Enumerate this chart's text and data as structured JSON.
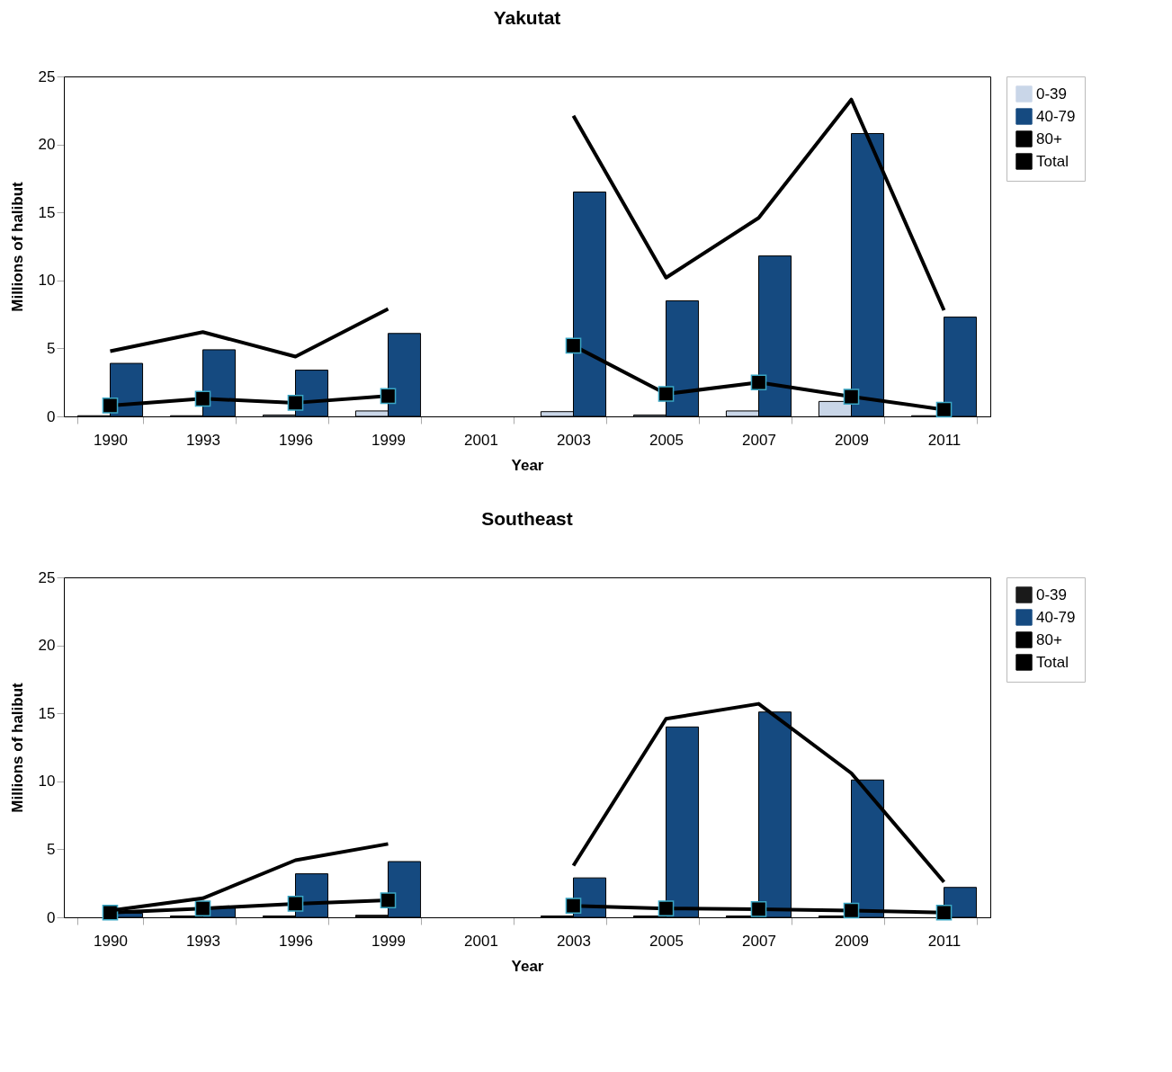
{
  "chart_data": [
    {
      "type": "bar",
      "title": "Yakutat",
      "xlabel": "Year",
      "ylabel": "Millions of halibut",
      "categories": [
        "1990",
        "1993",
        "1996",
        "1999",
        "2001",
        "2003",
        "2005",
        "2007",
        "2009",
        "2011"
      ],
      "ylim": [
        0,
        25
      ],
      "yticks": [
        0,
        5,
        10,
        15,
        20,
        25
      ],
      "legend": "right",
      "series": [
        {
          "name": "0-39",
          "color": "#c9d6e8",
          "values": [
            0.05,
            0.05,
            0.1,
            0.4,
            null,
            0.35,
            0.1,
            0.4,
            1.1,
            0.05
          ]
        },
        {
          "name": "40-79",
          "color": "#154a80",
          "values": [
            3.9,
            4.9,
            3.4,
            6.1,
            null,
            16.5,
            8.5,
            11.8,
            20.8,
            7.3
          ]
        },
        {
          "name": "80+",
          "type": "line",
          "marker": "square",
          "color": "#000000",
          "values": [
            0.8,
            1.3,
            1.0,
            1.5,
            null,
            5.2,
            1.65,
            2.5,
            1.45,
            0.5
          ]
        },
        {
          "name": "Total",
          "type": "line",
          "color": "#000000",
          "values": [
            4.8,
            6.2,
            4.4,
            7.9,
            null,
            22.1,
            10.2,
            14.6,
            23.3,
            7.8
          ]
        }
      ]
    },
    {
      "type": "bar",
      "title": "Southeast",
      "xlabel": "Year",
      "ylabel": "Millions of halibut",
      "categories": [
        "1990",
        "1993",
        "1996",
        "1999",
        "2001",
        "2003",
        "2005",
        "2007",
        "2009",
        "2011"
      ],
      "ylim": [
        0,
        25
      ],
      "yticks": [
        0,
        5,
        10,
        15,
        20,
        25
      ],
      "legend": "right",
      "series": [
        {
          "name": "0-39",
          "color": "#1a1a1a",
          "values": [
            null,
            0.1,
            0.1,
            0.15,
            null,
            0.1,
            0.1,
            0.1,
            0.1,
            null
          ]
        },
        {
          "name": "40-79",
          "color": "#154a80",
          "values": [
            0.3,
            0.7,
            3.2,
            4.1,
            null,
            2.9,
            14.0,
            15.1,
            10.1,
            2.2
          ]
        },
        {
          "name": "80+",
          "type": "line",
          "marker": "square",
          "color": "#000000",
          "values": [
            0.35,
            0.65,
            1.0,
            1.25,
            null,
            0.85,
            0.65,
            0.6,
            0.5,
            0.35
          ]
        },
        {
          "name": "Total",
          "type": "line",
          "color": "#000000",
          "values": [
            0.5,
            1.4,
            4.2,
            5.4,
            null,
            3.8,
            14.6,
            15.7,
            10.6,
            2.6
          ]
        }
      ]
    }
  ]
}
